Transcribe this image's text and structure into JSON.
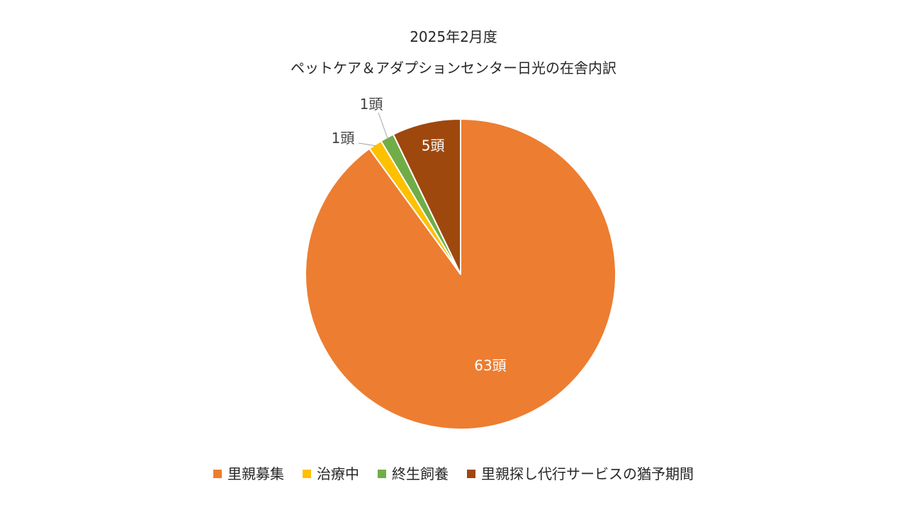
{
  "chart_data": {
    "type": "pie",
    "title": "2025年2月度",
    "subtitle": "ペットケア＆アダプションセンター日光の在舎内訳",
    "unit": "頭",
    "categories": [
      "里親募集",
      "治療中",
      "終生飼養",
      "里親探し代行サービスの猶予期間"
    ],
    "values": [
      63,
      1,
      1,
      5
    ],
    "data_labels": [
      "63頭",
      "1頭",
      "1頭",
      "5頭"
    ],
    "colors": [
      "#ED7D31",
      "#FFC000",
      "#70AD47",
      "#9E480E"
    ],
    "start": "12 o'clock",
    "direction": "clockwise",
    "legend_position": "bottom"
  }
}
